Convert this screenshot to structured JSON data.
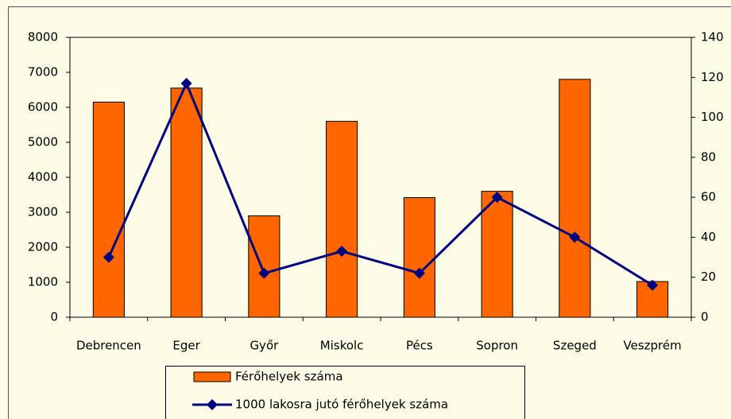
{
  "chart_data": {
    "type": "bar",
    "categories": [
      "Debrencen",
      "Eger",
      "Győr",
      "Miskolc",
      "Pécs",
      "Sopron",
      "Szeged",
      "Veszprém"
    ],
    "series": [
      {
        "name": "Férőhelyek száma",
        "type": "bar",
        "color": "#ff6600",
        "values": [
          6150,
          6550,
          2900,
          5600,
          3420,
          3600,
          6800,
          1020
        ]
      },
      {
        "name": "1000 lakosra jutó férőhelyek száma",
        "type": "line",
        "axis": "y2",
        "color": "#000080",
        "values": [
          30,
          117,
          22,
          33,
          22,
          60,
          40,
          16
        ]
      }
    ],
    "ylim": [
      0,
      8000
    ],
    "yticks": [
      0,
      1000,
      2000,
      3000,
      4000,
      5000,
      6000,
      7000,
      8000
    ],
    "y2lim": [
      0,
      140
    ],
    "y2ticks": [
      0,
      20,
      40,
      60,
      80,
      100,
      120,
      140
    ],
    "grid": false
  }
}
